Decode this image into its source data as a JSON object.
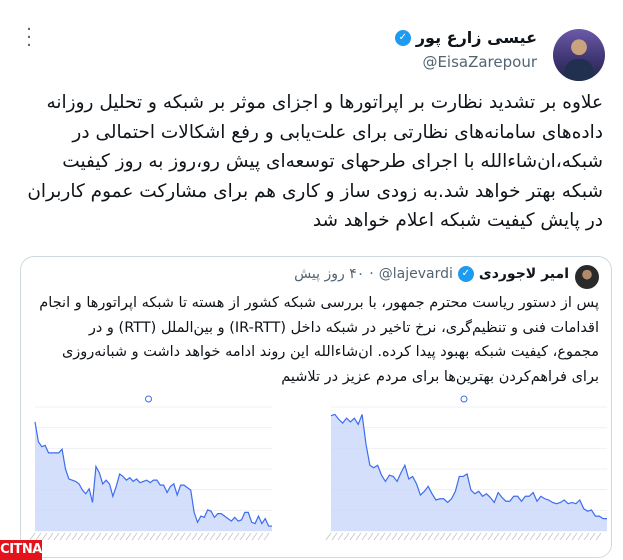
{
  "tweet": {
    "author_name": "عیسی زارع پور",
    "handle": "@EisaZarepour",
    "verified": true,
    "more_icon": "more-vertical-icon",
    "text_lines": [
      "علاوه بر تشدید نظارت بر اپراتورها و اجزای موثر بر شبکه و تحلیل روزانه",
      "داده‌های سامانه‌های نظارتی برای علت‌یابی و رفع اشکالات احتمالی در",
      "شبکه،ان‌شاءالله با اجرای طرحهای توسعه‌ای پیش رو،روز به روز کیفیت",
      "شبکه بهتر خواهد شد.به زودی ساز و کاری هم برای مشارکت عموم کاربران",
      "در پایش کیفیت شبکه اعلام خواهد شد"
    ]
  },
  "quoted_tweet": {
    "author_name": "امیر لاجوردی",
    "handle": "@lajevardi",
    "separator": "·",
    "time": "۴۰ روز پیش",
    "verified": true,
    "text_lines": [
      "پس از دستور ریاست محترم جمهور، با بررسی شبکه کشور از هسته تا شبکه اپراتورها و انجام",
      "اقدامات فنی و تنظیم‌گری، نرخ تاخیر در شبکه داخل (IR-RTT) و بین‌الملل (RTT) و در",
      "مجموع، کیفیت شبکه بهبود پیدا کرده. ان‌شاءالله این روند ادامه خواهد داشت و شبانه‌روزی",
      "برای فراهم‌کردن بهترین‌ها برای مردم عزیز در تلاشیم"
    ]
  },
  "colors": {
    "accent": "#1d9bf0",
    "chart_line": "#3d6cf0",
    "chart_fill": "#c9d7fb",
    "logo": "#e3131b"
  },
  "watermark": "citna"
}
